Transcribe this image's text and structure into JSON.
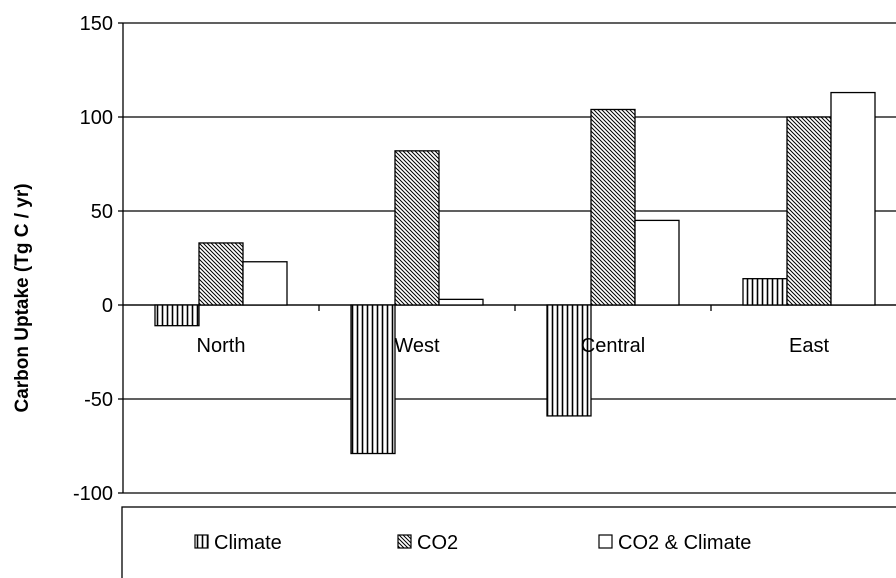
{
  "chart_data": {
    "type": "bar",
    "title": "",
    "xlabel": "",
    "ylabel": "Carbon Uptake (Tg C / yr)",
    "ylim": [
      -100,
      150
    ],
    "yticks": [
      -100,
      -50,
      0,
      50,
      100,
      150
    ],
    "categories": [
      "North",
      "West",
      "Central",
      "East"
    ],
    "series": [
      {
        "name": "Climate",
        "values": [
          -11,
          -79,
          -59,
          14
        ],
        "pattern": "vertical-lines"
      },
      {
        "name": "CO2",
        "values": [
          33,
          82,
          104,
          100
        ],
        "pattern": "diagonal-lines"
      },
      {
        "name": "CO2 & Climate",
        "values": [
          23,
          3,
          45,
          113
        ],
        "pattern": "none"
      }
    ],
    "grid": true,
    "legend": "bottom",
    "colors": {
      "bar_stroke": "#000000",
      "bar_fill": "#ffffff",
      "pattern": "#000000"
    }
  }
}
